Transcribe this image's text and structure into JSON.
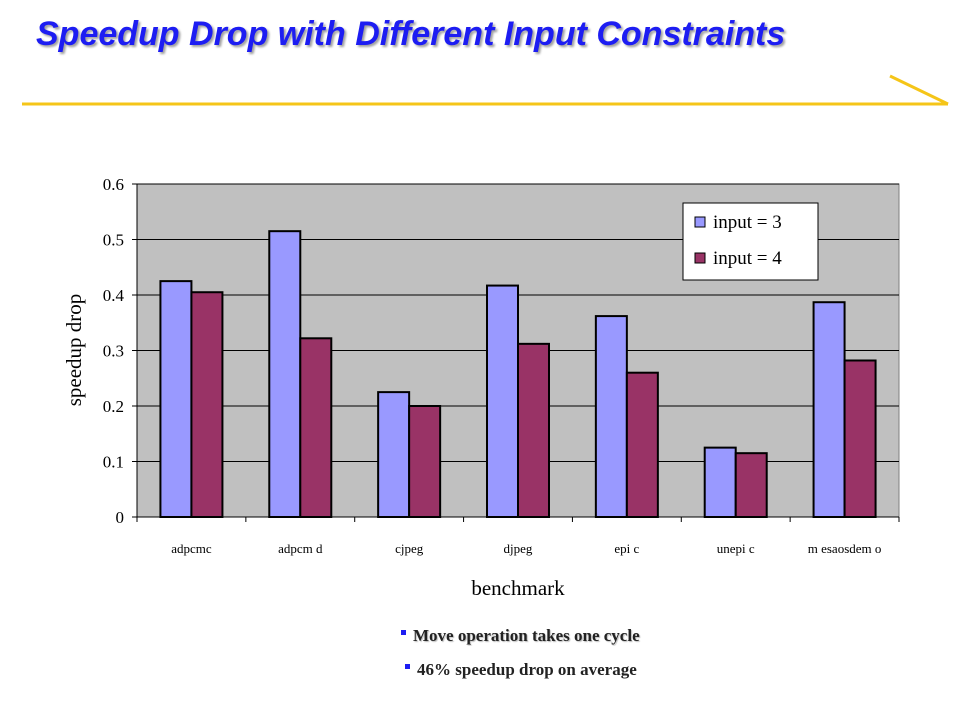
{
  "slide": {
    "title": "Speedup Drop with Different Input Constraints"
  },
  "colors": {
    "title": "#1d1df2",
    "accent_rule": "#f5c518",
    "plot_bg": "#c0c0c0",
    "series_1": "#9999ff",
    "series_2": "#993366"
  },
  "chart_data": {
    "type": "bar",
    "title": "",
    "xlabel": "benchmark",
    "ylabel": "speedup drop",
    "categories": [
      "adpcmc",
      "adpcmd",
      "cjpeg",
      "djpeg",
      "epic",
      "unepic",
      "mesaosdemo"
    ],
    "category_labels": [
      "adpcmc",
      "adpcm d",
      "cjpeg",
      "djpeg",
      "epi c",
      "unepi c",
      "m esaosdem o"
    ],
    "series": [
      {
        "name": "input = 3",
        "values": [
          0.425,
          0.515,
          0.225,
          0.417,
          0.362,
          0.125,
          0.387
        ]
      },
      {
        "name": "input = 4",
        "values": [
          0.405,
          0.322,
          0.2,
          0.312,
          0.26,
          0.115,
          0.282
        ]
      }
    ],
    "ylim": [
      0,
      0.6
    ],
    "yticks": [
      "0",
      "0.1",
      "0.2",
      "0.3",
      "0.4",
      "0.5",
      "0.6"
    ],
    "grid": true,
    "legend_position": "top-right"
  },
  "bullets": [
    {
      "text": "Move operation takes one cycle"
    },
    {
      "text": "46% speedup drop on average"
    }
  ]
}
